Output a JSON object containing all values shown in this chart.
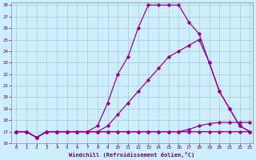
{
  "xlabel": "Windchill (Refroidissement éolien,°C)",
  "bg_color": "#cceeff",
  "grid_color": "#aaccbb",
  "line_color": "#990099",
  "xmin": 0,
  "xmax": 23,
  "ymin": 16,
  "ymax": 28,
  "xticks": [
    0,
    1,
    2,
    3,
    4,
    5,
    6,
    7,
    8,
    9,
    10,
    11,
    12,
    13,
    14,
    15,
    16,
    17,
    18,
    19,
    20,
    21,
    22,
    23
  ],
  "yticks": [
    16,
    17,
    18,
    19,
    20,
    21,
    22,
    23,
    24,
    25,
    26,
    27,
    28
  ],
  "line1_x": [
    0,
    1,
    2,
    3,
    4,
    5,
    6,
    7,
    8,
    9,
    10,
    11,
    12,
    13,
    14,
    15,
    16,
    17,
    18,
    19,
    20,
    21,
    22,
    23
  ],
  "line1_y": [
    17,
    17,
    16.5,
    17,
    17,
    17,
    17,
    17,
    17,
    17,
    17,
    17,
    17,
    17,
    17,
    17,
    17,
    17,
    17,
    17,
    17,
    17,
    17,
    17
  ],
  "line2_x": [
    0,
    1,
    2,
    3,
    4,
    5,
    6,
    7,
    8,
    9,
    10,
    11,
    12,
    13,
    14,
    15,
    16,
    17,
    18,
    19,
    20,
    21,
    22,
    23
  ],
  "line2_y": [
    17,
    17,
    16.5,
    17,
    17,
    17,
    17,
    17,
    17,
    17,
    17,
    17,
    17,
    17,
    17,
    17,
    17,
    17.2,
    17.5,
    17.7,
    17.8,
    17.8,
    17.8,
    17.8
  ],
  "line3_x": [
    0,
    1,
    2,
    3,
    4,
    5,
    6,
    7,
    8,
    9,
    10,
    11,
    12,
    13,
    14,
    15,
    16,
    17,
    18,
    19,
    20,
    21,
    22,
    23
  ],
  "line3_y": [
    17,
    17,
    16.5,
    17,
    17,
    17,
    17,
    17,
    17,
    17.5,
    18.5,
    19.5,
    20.5,
    21.5,
    22.5,
    23.5,
    24.0,
    24.5,
    25.0,
    23.0,
    20.5,
    19.0,
    17.5,
    17.0
  ],
  "line4_x": [
    0,
    1,
    2,
    3,
    4,
    5,
    6,
    7,
    8,
    9,
    10,
    11,
    12,
    13,
    14,
    15,
    16,
    17,
    18,
    19,
    20,
    21,
    22,
    23
  ],
  "line4_y": [
    17,
    17,
    16.5,
    17,
    17,
    17,
    17,
    17,
    17.5,
    19.5,
    22.0,
    23.5,
    26.0,
    28.0,
    28.0,
    28.0,
    28.0,
    26.5,
    25.5,
    23.0,
    20.5,
    19.0,
    17.5,
    17.0
  ]
}
